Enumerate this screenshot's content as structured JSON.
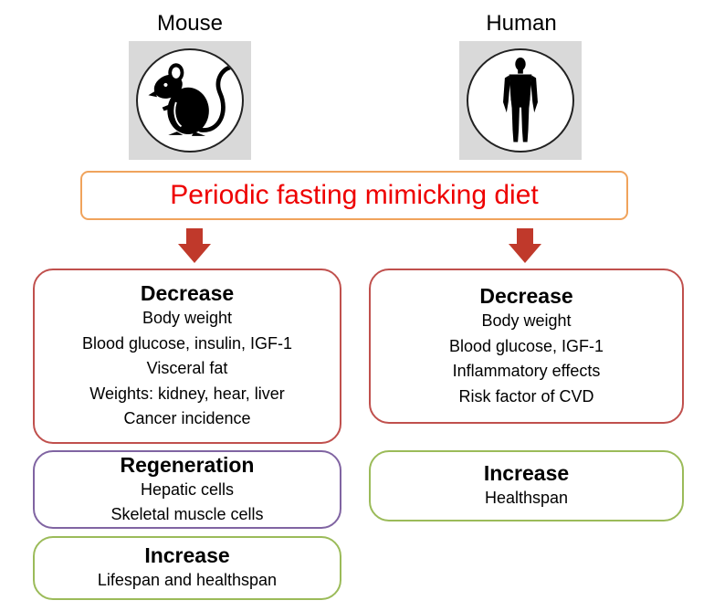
{
  "columns": {
    "mouse": {
      "title": "Mouse",
      "icon": "mouse-icon"
    },
    "human": {
      "title": "Human",
      "icon": "human-figure-icon"
    }
  },
  "diet_label": "Periodic fasting mimicking diet",
  "mouse_boxes": {
    "decrease": {
      "heading": "Decrease",
      "items": [
        "Body weight",
        "Blood glucose, insulin, IGF-1",
        "Visceral fat",
        "Weights: kidney, hear, liver",
        "Cancer incidence"
      ]
    },
    "regeneration": {
      "heading": "Regeneration",
      "items": [
        "Hepatic cells",
        "Skeletal muscle cells"
      ]
    },
    "increase": {
      "heading": "Increase",
      "items": [
        "Lifespan and healthspan"
      ]
    }
  },
  "human_boxes": {
    "decrease": {
      "heading": "Decrease",
      "items": [
        "Body weight",
        "Blood glucose, IGF-1",
        "Inflammatory effects",
        "Risk factor of CVD"
      ]
    },
    "increase": {
      "heading": "Increase",
      "items": [
        "Healthspan"
      ]
    }
  },
  "colors": {
    "diet_text": "#ee0000",
    "diet_border": "#f0a35c",
    "arrow": "#c0392b",
    "decrease_border": "#c0504d",
    "regeneration_border": "#8064a2",
    "increase_border": "#9bbb59"
  }
}
